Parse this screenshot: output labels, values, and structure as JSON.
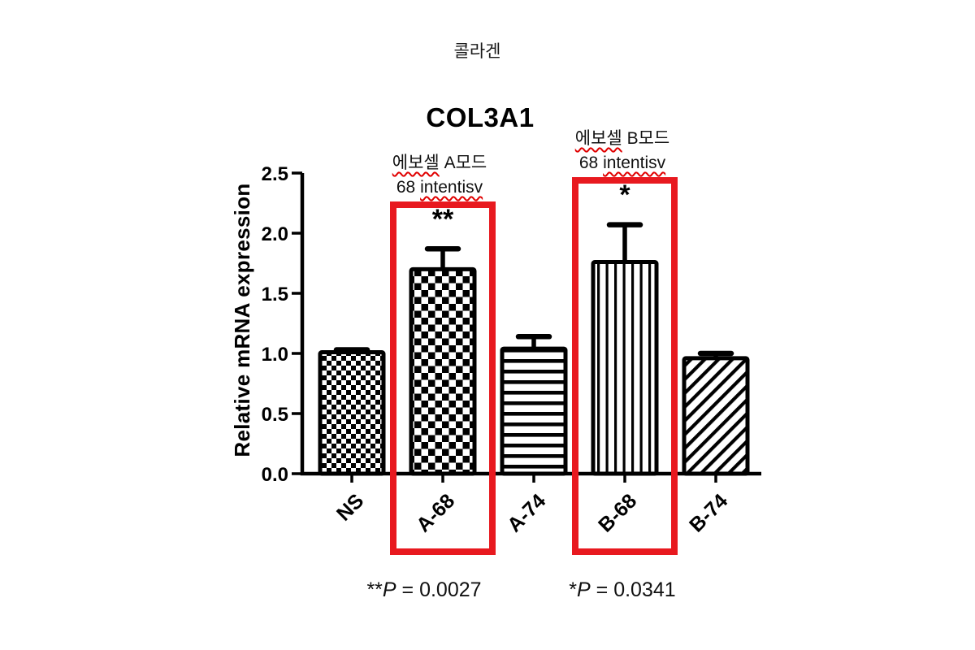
{
  "header": {
    "kicker": "콜라겐"
  },
  "chart_data": {
    "type": "bar",
    "title": "COL3A1",
    "ylabel": "Relative mRNA expression",
    "xlabel": "",
    "ylim": [
      0,
      2.5
    ],
    "yticks": [
      "0.0",
      "0.5",
      "1.0",
      "1.5",
      "2.0",
      "2.5"
    ],
    "grid": false,
    "legend": false,
    "categories": [
      "NS",
      "A-68",
      "A-74",
      "B-68",
      "B-74"
    ],
    "values": [
      1.01,
      1.7,
      1.04,
      1.76,
      0.96
    ],
    "errors": [
      0.02,
      0.17,
      0.1,
      0.31,
      0.04
    ],
    "patterns": [
      "checker-small",
      "checker-large",
      "stripes-horizontal",
      "stripes-vertical",
      "stripes-diagonal"
    ],
    "bar_color": "#000000",
    "highlight_color": "#e8191f",
    "highlights": [
      {
        "category": "A-68",
        "significance": "**",
        "note": {
          "wavy1": "에보셀",
          "rest1": " A모드",
          "plain2": "68 ",
          "wavy2": "intentisv"
        },
        "p": {
          "stars": "**",
          "letter": "P",
          "rest": " = 0.0027"
        }
      },
      {
        "category": "B-68",
        "significance": "*",
        "note": {
          "wavy1": "에보셀",
          "rest1": " B모드",
          "plain2": "68 ",
          "wavy2": "intentisv"
        },
        "p": {
          "stars": "*",
          "letter": "P",
          "rest": " = 0.0341"
        }
      }
    ]
  }
}
